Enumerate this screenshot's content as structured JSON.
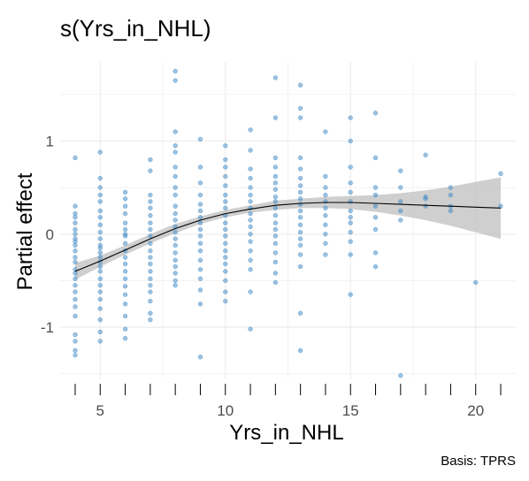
{
  "chart_data": {
    "type": "scatter",
    "title": "s(Yrs_in_NHL)",
    "xlabel": "Yrs_in_NHL",
    "ylabel": "Partial effect",
    "caption": "Basis: TPRS",
    "xlim": [
      3.4,
      21.6
    ],
    "ylim": [
      -1.55,
      1.85
    ],
    "x_ticks": [
      5,
      10,
      15,
      20
    ],
    "y_ticks": [
      -1,
      0,
      1
    ],
    "grid": true,
    "colors": {
      "points": "#4a90c8",
      "smooth": "#000000",
      "ribbon": "#bfbfbf",
      "grid": "#ebebeb",
      "rug": "#000000"
    },
    "series": [
      {
        "type": "line",
        "x": [
          4,
          5,
          6,
          7,
          8,
          9,
          10,
          11,
          12,
          13,
          14,
          15,
          16,
          17,
          18,
          19,
          20,
          21
        ],
        "y": [
          -0.4,
          -0.29,
          -0.17,
          -0.05,
          0.06,
          0.15,
          0.22,
          0.27,
          0.31,
          0.33,
          0.34,
          0.34,
          0.33,
          0.32,
          0.31,
          0.3,
          0.29,
          0.28
        ],
        "lower": [
          -0.49,
          -0.35,
          -0.22,
          -0.1,
          0.01,
          0.11,
          0.18,
          0.23,
          0.26,
          0.28,
          0.28,
          0.27,
          0.24,
          0.2,
          0.15,
          0.09,
          0.02,
          -0.05
        ],
        "upper": [
          -0.31,
          -0.23,
          -0.12,
          0.0,
          0.11,
          0.19,
          0.26,
          0.31,
          0.36,
          0.38,
          0.4,
          0.41,
          0.42,
          0.44,
          0.47,
          0.51,
          0.56,
          0.61
        ]
      }
    ],
    "points": [
      {
        "x": 4,
        "y": [
          0.82,
          0.3,
          0.22,
          0.12,
          0.05,
          0.0,
          -0.05,
          -0.12,
          -0.18,
          -0.25,
          -0.3,
          -0.38,
          -0.42,
          -0.48,
          -0.55,
          -0.62,
          -0.7,
          -0.78,
          -0.88,
          -1.08,
          -1.15,
          -1.25,
          -1.3,
          0.18,
          -0.08
        ]
      },
      {
        "x": 5,
        "y": [
          0.88,
          0.6,
          0.5,
          0.35,
          0.25,
          0.18,
          0.1,
          0.02,
          -0.05,
          -0.12,
          -0.2,
          -0.25,
          -0.3,
          -0.35,
          -0.4,
          -0.48,
          -0.55,
          -0.62,
          -0.7,
          -0.8,
          -0.92,
          -1.05,
          -1.15,
          0.42,
          -0.15
        ]
      },
      {
        "x": 6,
        "y": [
          0.45,
          0.38,
          0.3,
          0.22,
          0.12,
          0.05,
          -0.02,
          -0.1,
          -0.18,
          -0.25,
          -0.32,
          -0.4,
          -0.48,
          -0.56,
          -0.65,
          -0.75,
          -0.88,
          -1.02,
          -1.12,
          0.0
        ]
      },
      {
        "x": 7,
        "y": [
          0.8,
          0.68,
          0.42,
          0.35,
          0.28,
          0.2,
          0.12,
          0.05,
          -0.02,
          -0.1,
          -0.18,
          -0.25,
          -0.32,
          -0.4,
          -0.48,
          -0.55,
          -0.62,
          -0.72,
          -0.85,
          -0.92
        ]
      },
      {
        "x": 8,
        "y": [
          1.75,
          1.65,
          1.1,
          0.95,
          0.88,
          0.72,
          0.62,
          0.5,
          0.42,
          0.3,
          0.22,
          0.15,
          0.08,
          0.02,
          -0.05,
          -0.12,
          -0.2,
          -0.28,
          -0.35,
          -0.42,
          -0.5,
          -0.55
        ]
      },
      {
        "x": 9,
        "y": [
          1.02,
          0.72,
          0.55,
          0.42,
          0.32,
          0.25,
          0.18,
          0.12,
          0.05,
          -0.02,
          -0.1,
          -0.18,
          -0.28,
          -0.38,
          -0.48,
          -0.6,
          -0.75,
          -1.32
        ]
      },
      {
        "x": 10,
        "y": [
          0.95,
          0.8,
          0.72,
          0.62,
          0.52,
          0.42,
          0.35,
          0.28,
          0.2,
          0.12,
          0.05,
          -0.02,
          -0.1,
          -0.18,
          -0.25,
          -0.32,
          -0.4,
          -0.5,
          -0.62,
          -0.72
        ]
      },
      {
        "x": 11,
        "y": [
          1.12,
          0.9,
          0.7,
          0.6,
          0.5,
          0.42,
          0.35,
          0.28,
          0.22,
          0.15,
          0.08,
          0.0,
          -0.08,
          -0.18,
          -0.28,
          -0.38,
          -0.62,
          -1.02
        ]
      },
      {
        "x": 12,
        "y": [
          1.68,
          1.25,
          0.82,
          0.72,
          0.62,
          0.55,
          0.48,
          0.4,
          0.35,
          0.28,
          0.2,
          0.12,
          0.05,
          -0.02,
          -0.1,
          -0.2,
          -0.3,
          -0.42,
          -0.52
        ]
      },
      {
        "x": 13,
        "y": [
          1.6,
          1.35,
          1.25,
          0.82,
          0.7,
          0.6,
          0.52,
          0.45,
          0.38,
          0.32,
          0.25,
          0.18,
          0.1,
          0.02,
          -0.05,
          -0.12,
          -0.22,
          -0.35,
          -0.85,
          -1.25
        ]
      },
      {
        "x": 14,
        "y": [
          1.1,
          0.62,
          0.5,
          0.42,
          0.35,
          0.28,
          0.2,
          0.1,
          0.0,
          -0.1,
          -0.22
        ]
      },
      {
        "x": 15,
        "y": [
          1.25,
          1.0,
          0.72,
          0.55,
          0.45,
          0.35,
          0.25,
          0.18,
          0.12,
          0.02,
          -0.08,
          -0.22,
          -0.65
        ]
      },
      {
        "x": 16,
        "y": [
          1.3,
          0.82,
          0.5,
          0.42,
          0.3,
          0.18,
          0.05,
          -0.2,
          -0.35
        ]
      },
      {
        "x": 17,
        "y": [
          0.68,
          0.5,
          0.35,
          0.25,
          0.15,
          -1.52
        ]
      },
      {
        "x": 18,
        "y": [
          0.85,
          0.4,
          0.38,
          0.3
        ]
      },
      {
        "x": 19,
        "y": [
          0.5,
          0.42,
          0.3,
          0.25
        ]
      },
      {
        "x": 20,
        "y": [
          -0.52
        ]
      },
      {
        "x": 21,
        "y": [
          0.65,
          0.3
        ]
      }
    ],
    "rug_x": [
      4,
      5,
      6,
      7,
      8,
      9,
      10,
      11,
      12,
      13,
      14,
      15,
      16,
      17,
      18,
      19,
      20,
      21
    ]
  }
}
